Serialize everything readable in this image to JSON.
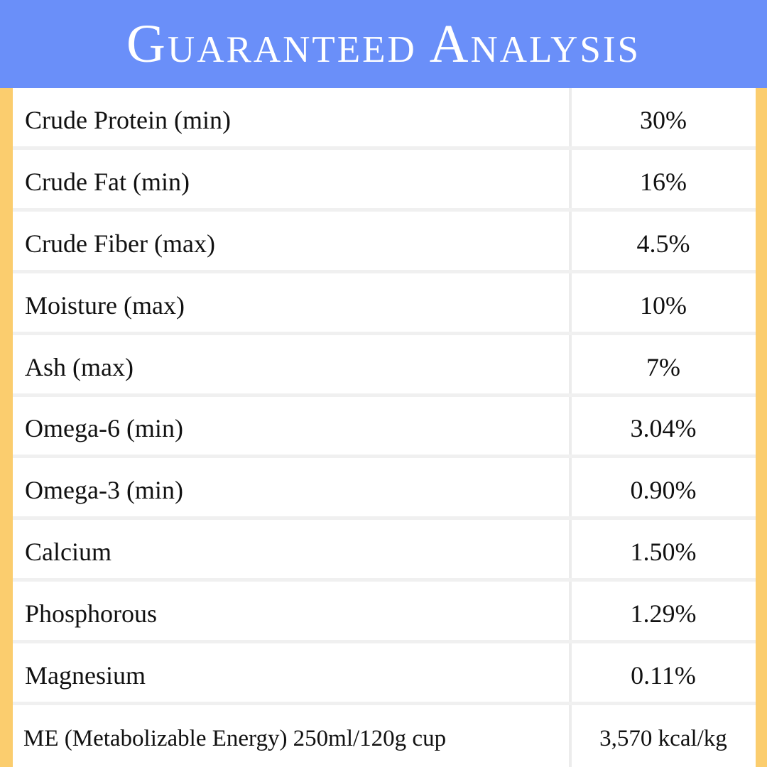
{
  "header": {
    "title": "Guaranteed Analysis"
  },
  "table": {
    "rows": [
      [
        "Crude Protein (min)",
        "30%"
      ],
      [
        "Crude Fat (min)",
        "16%"
      ],
      [
        "Crude Fiber (max)",
        "4.5%"
      ],
      [
        "Moisture (max)",
        "10%"
      ],
      [
        "Ash (max)",
        "7%"
      ],
      [
        "Omega-6 (min)",
        "3.04%"
      ],
      [
        "Omega-3 (min)",
        "0.90%"
      ],
      [
        "Calcium",
        "1.50%"
      ],
      [
        "Phosphorous",
        "1.29%"
      ],
      [
        "Magnesium",
        "0.11%"
      ],
      [
        "ME (Metabolizable Energy) 250ml/120g cup",
        "3,570 kcal/kg"
      ]
    ]
  }
}
